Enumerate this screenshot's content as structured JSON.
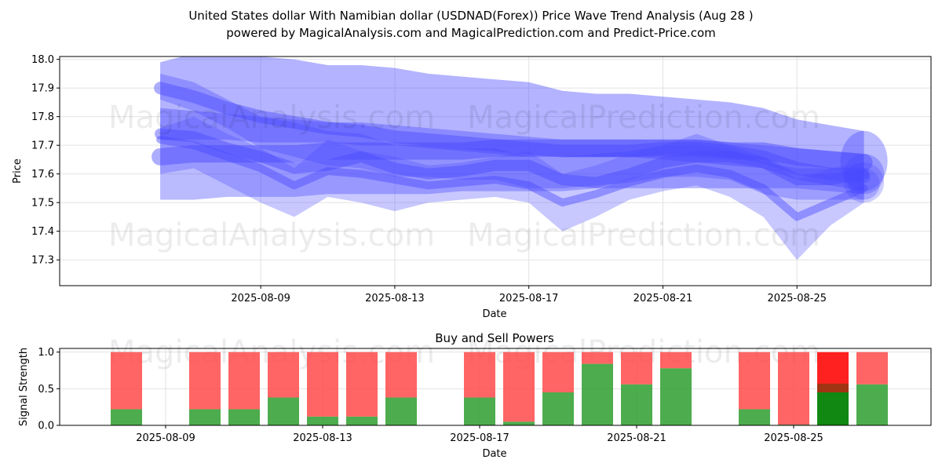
{
  "title_line1": "United States dollar With Namibian dollar (USDNAD(Forex)) Price Wave Trend Analysis (Aug 28 )",
  "title_line2": "powered by MagicalAnalysis.com and MagicalPrediction.com and Predict-Price.com",
  "watermarks": [
    "MagicalAnalysis.com",
    "MagicalPrediction.com"
  ],
  "colors": {
    "wave": "#4a4aff",
    "buy": "#2e9e2e",
    "sell": "#ff4a4a",
    "buy_strong": "#118811",
    "sell_strong": "#ff2020"
  },
  "chart_data": [
    {
      "type": "area",
      "name": "price-wave-trend",
      "xlabel": "Date",
      "ylabel": "Price",
      "ylim": [
        17.21,
        18.01
      ],
      "yticks": [
        17.3,
        17.4,
        17.5,
        17.6,
        17.7,
        17.8,
        17.9,
        18.0
      ],
      "ytick_labels": [
        "17.3",
        "17.4",
        "17.5",
        "17.6",
        "17.7",
        "17.8",
        "17.9",
        "18.0"
      ],
      "xlim_day": [
        3,
        29
      ],
      "xticks_day": [
        9,
        13,
        17,
        21,
        25
      ],
      "xtick_labels": [
        "2025-08-09",
        "2025-08-13",
        "2025-08-17",
        "2025-08-21",
        "2025-08-25"
      ],
      "grid": true,
      "x_days": [
        6,
        7,
        8,
        9,
        10,
        11,
        12,
        13,
        14,
        15,
        16,
        17,
        18,
        19,
        20,
        21,
        22,
        23,
        24,
        25,
        26,
        27
      ],
      "bands": [
        {
          "upper": [
            17.99,
            18.02,
            18.02,
            18.01,
            18.0,
            17.98,
            17.98,
            17.97,
            17.95,
            17.94,
            17.93,
            17.92,
            17.89,
            17.88,
            17.88,
            17.87,
            17.86,
            17.85,
            17.83,
            17.79,
            17.77,
            17.75
          ],
          "lower": [
            17.72,
            17.72,
            17.72,
            17.71,
            17.71,
            17.71,
            17.7,
            17.7,
            17.69,
            17.68,
            17.67,
            17.66,
            17.66,
            17.66,
            17.66,
            17.65,
            17.64,
            17.63,
            17.62,
            17.58,
            17.56,
            17.54
          ]
        },
        {
          "upper": [
            17.83,
            17.82,
            17.81,
            17.8,
            17.79,
            17.78,
            17.78,
            17.77,
            17.76,
            17.75,
            17.74,
            17.73,
            17.72,
            17.72,
            17.72,
            17.72,
            17.72,
            17.71,
            17.7,
            17.69,
            17.68,
            17.67
          ],
          "lower": [
            17.51,
            17.51,
            17.52,
            17.52,
            17.52,
            17.53,
            17.53,
            17.53,
            17.53,
            17.54,
            17.54,
            17.54,
            17.54,
            17.55,
            17.55,
            17.55,
            17.55,
            17.55,
            17.55,
            17.55,
            17.54,
            17.53
          ]
        },
        {
          "upper": [
            17.76,
            17.8,
            17.74,
            17.69,
            17.62,
            17.72,
            17.68,
            17.66,
            17.63,
            17.64,
            17.66,
            17.68,
            17.6,
            17.63,
            17.67,
            17.7,
            17.74,
            17.7,
            17.66,
            17.58,
            17.62,
            17.64
          ],
          "lower": [
            17.6,
            17.62,
            17.56,
            17.5,
            17.45,
            17.52,
            17.5,
            17.47,
            17.5,
            17.51,
            17.52,
            17.5,
            17.4,
            17.45,
            17.51,
            17.54,
            17.56,
            17.52,
            17.45,
            17.3,
            17.42,
            17.5
          ]
        },
        {
          "upper": [
            17.95,
            17.92,
            17.86,
            17.8,
            17.78,
            17.75,
            17.74,
            17.7,
            17.7,
            17.69,
            17.69,
            17.66,
            17.66,
            17.67,
            17.68,
            17.7,
            17.7,
            17.69,
            17.64,
            17.62,
            17.62,
            17.62
          ],
          "lower": [
            17.86,
            17.82,
            17.76,
            17.69,
            17.66,
            17.63,
            17.62,
            17.59,
            17.59,
            17.58,
            17.58,
            17.55,
            17.55,
            17.56,
            17.57,
            17.59,
            17.59,
            17.58,
            17.53,
            17.51,
            17.51,
            17.51
          ]
        }
      ],
      "lines": [
        [
          17.66,
          17.67,
          17.67,
          17.67,
          17.67,
          17.68,
          17.68,
          17.68,
          17.68,
          17.68,
          17.69,
          17.69,
          17.69,
          17.69,
          17.69,
          17.69,
          17.69,
          17.68,
          17.68,
          17.66,
          17.65,
          17.64
        ],
        [
          17.74,
          17.73,
          17.69,
          17.66,
          17.62,
          17.63,
          17.66,
          17.62,
          17.6,
          17.61,
          17.63,
          17.63,
          17.58,
          17.57,
          17.6,
          17.64,
          17.66,
          17.66,
          17.64,
          17.58,
          17.58,
          17.6
        ],
        [
          17.9,
          17.87,
          17.83,
          17.8,
          17.78,
          17.76,
          17.75,
          17.73,
          17.72,
          17.71,
          17.7,
          17.69,
          17.68,
          17.68,
          17.68,
          17.69,
          17.69,
          17.68,
          17.66,
          17.62,
          17.6,
          17.59
        ],
        [
          17.72,
          17.7,
          17.66,
          17.62,
          17.56,
          17.61,
          17.6,
          17.58,
          17.56,
          17.57,
          17.58,
          17.56,
          17.5,
          17.53,
          17.57,
          17.6,
          17.62,
          17.6,
          17.55,
          17.45,
          17.5,
          17.55
        ]
      ]
    },
    {
      "type": "bar",
      "name": "buy-and-sell-powers",
      "title": "Buy and Sell Powers",
      "xlabel": "Date",
      "ylabel": "Signal Strength",
      "ylim": [
        0,
        1.05
      ],
      "yticks": [
        0.0,
        0.5,
        1.0
      ],
      "ytick_labels": [
        "0.0",
        "0.5",
        "1.0"
      ],
      "xlim_day": [
        6.3,
        28.5
      ],
      "xticks_day": [
        9,
        13,
        17,
        21,
        25
      ],
      "xtick_labels": [
        "2025-08-09",
        "2025-08-13",
        "2025-08-17",
        "2025-08-21",
        "2025-08-25"
      ],
      "grid": true,
      "bars": [
        {
          "day": 8,
          "buy": 0.22,
          "sell": 0.78,
          "strong": false
        },
        {
          "day": 10,
          "buy": 0.22,
          "sell": 0.78,
          "strong": false
        },
        {
          "day": 11,
          "buy": 0.22,
          "sell": 0.78,
          "strong": false
        },
        {
          "day": 12,
          "buy": 0.38,
          "sell": 0.62,
          "strong": false
        },
        {
          "day": 13,
          "buy": 0.12,
          "sell": 0.88,
          "strong": false
        },
        {
          "day": 14,
          "buy": 0.12,
          "sell": 0.88,
          "strong": false
        },
        {
          "day": 15,
          "buy": 0.38,
          "sell": 0.62,
          "strong": false
        },
        {
          "day": 17,
          "buy": 0.38,
          "sell": 0.62,
          "strong": false
        },
        {
          "day": 18,
          "buy": 0.05,
          "sell": 0.95,
          "strong": false
        },
        {
          "day": 19,
          "buy": 0.45,
          "sell": 0.55,
          "strong": false
        },
        {
          "day": 20,
          "buy": 0.84,
          "sell": 0.16,
          "strong": false
        },
        {
          "day": 21,
          "buy": 0.56,
          "sell": 0.44,
          "strong": false
        },
        {
          "day": 22,
          "buy": 0.78,
          "sell": 0.22,
          "strong": false
        },
        {
          "day": 24,
          "buy": 0.22,
          "sell": 0.78,
          "strong": false
        },
        {
          "day": 25,
          "buy": 0.01,
          "sell": 0.99,
          "strong": false
        },
        {
          "day": 26,
          "buy": 0.45,
          "sell": 0.55,
          "strong": true
        },
        {
          "day": 27,
          "buy": 0.56,
          "sell": 0.44,
          "strong": false
        }
      ]
    }
  ]
}
